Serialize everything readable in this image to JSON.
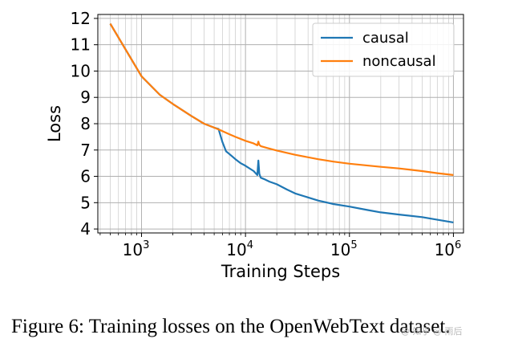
{
  "chart_data": {
    "type": "line",
    "xlabel": "Training Steps",
    "ylabel": "Loss",
    "xscale": "log",
    "xlim": [
      380,
      1250000
    ],
    "ylim": [
      3.85,
      12.15
    ],
    "yticks": [
      4,
      5,
      6,
      7,
      8,
      9,
      10,
      11,
      12
    ],
    "xticks": [
      {
        "base": "10",
        "exp": "3",
        "value": 1000
      },
      {
        "base": "10",
        "exp": "4",
        "value": 10000
      },
      {
        "base": "10",
        "exp": "5",
        "value": 100000
      },
      {
        "base": "10",
        "exp": "6",
        "value": 1000000
      }
    ],
    "grid": "major and minor",
    "legend_position": "top-right",
    "series": [
      {
        "name": "causal",
        "color": "#1f77b4",
        "x": [
          500,
          1000,
          1500,
          2000,
          3000,
          4000,
          5000,
          5500,
          6000,
          6500,
          7000,
          8000,
          9000,
          10000,
          12000,
          13000,
          13300,
          13600,
          14000,
          15000,
          17000,
          20000,
          25000,
          30000,
          40000,
          50000,
          70000,
          100000,
          150000,
          200000,
          300000,
          500000,
          700000,
          1000000
        ],
        "y": [
          11.8,
          9.8,
          9.1,
          8.75,
          8.3,
          8.0,
          7.85,
          7.8,
          7.3,
          6.95,
          6.85,
          6.65,
          6.5,
          6.4,
          6.2,
          6.05,
          6.6,
          6.1,
          5.95,
          5.9,
          5.8,
          5.7,
          5.5,
          5.35,
          5.2,
          5.08,
          4.95,
          4.85,
          4.72,
          4.63,
          4.55,
          4.45,
          4.35,
          4.25
        ]
      },
      {
        "name": "noncausal",
        "color": "#ff7f0e",
        "x": [
          500,
          1000,
          1500,
          2000,
          3000,
          4000,
          5000,
          6000,
          7000,
          8000,
          10000,
          12000,
          13000,
          13300,
          13600,
          14000,
          16000,
          20000,
          30000,
          50000,
          70000,
          100000,
          200000,
          300000,
          500000,
          700000,
          1000000
        ],
        "y": [
          11.8,
          9.8,
          9.1,
          8.75,
          8.3,
          8.0,
          7.85,
          7.72,
          7.6,
          7.5,
          7.35,
          7.25,
          7.18,
          7.32,
          7.2,
          7.15,
          7.08,
          6.98,
          6.82,
          6.65,
          6.56,
          6.48,
          6.36,
          6.3,
          6.2,
          6.12,
          6.05
        ]
      }
    ]
  },
  "caption": "Figure 6: Training losses on the OpenWebText dataset.",
  "watermark": "@ 知乎 @ 雨后"
}
